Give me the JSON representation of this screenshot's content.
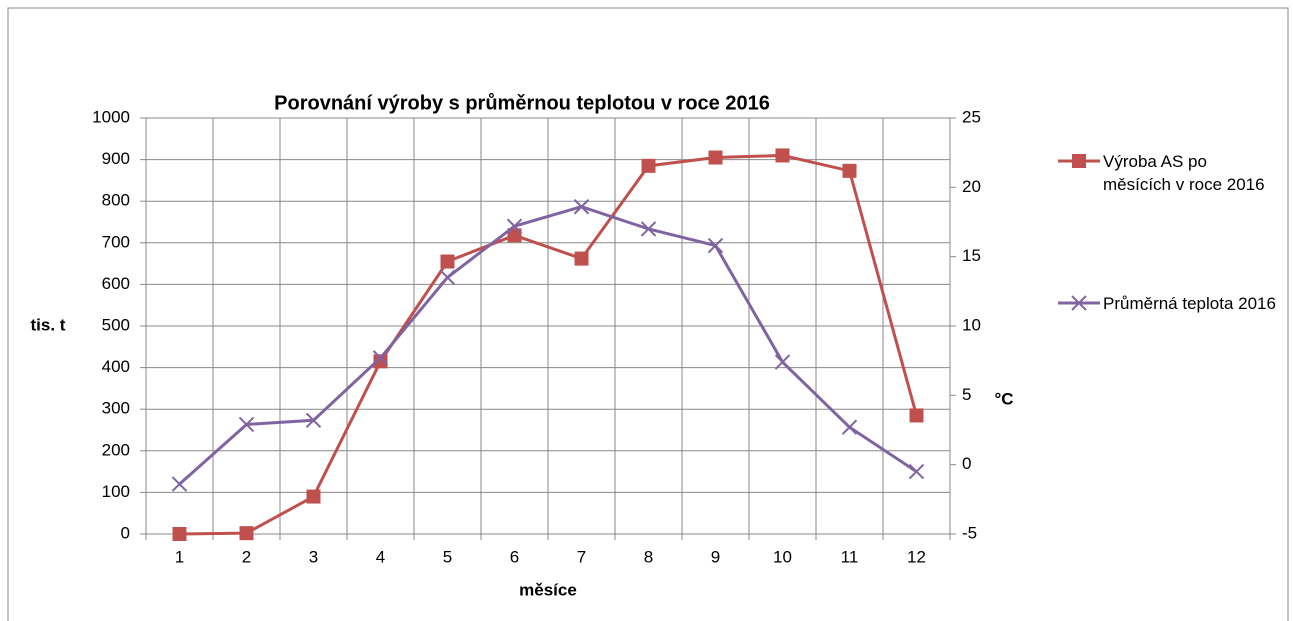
{
  "chart_data": {
    "type": "line",
    "title": "Porovnání výroby s průměrnou teplotou v roce 2016",
    "xlabel": "měsíce",
    "ylabel": "tis. t",
    "y2label": "°C",
    "categories": [
      "1",
      "2",
      "3",
      "4",
      "5",
      "6",
      "7",
      "8",
      "9",
      "10",
      "11",
      "12"
    ],
    "series": [
      {
        "name": "Výroba AS po měsících v roce 2016",
        "color": "#c0504d",
        "marker": "square",
        "values": [
          0,
          2,
          90,
          415,
          655,
          718,
          662,
          885,
          905,
          910,
          873,
          285
        ]
      },
      {
        "name": "Průměrná teplota 2016",
        "color": "#8064a2",
        "marker": "x",
        "axis": "y2",
        "values": [
          -1.4,
          2.9,
          3.2,
          7.7,
          13.5,
          17.2,
          18.6,
          17.0,
          15.8,
          7.4,
          2.7,
          -0.5
        ]
      }
    ],
    "ylim": [
      0,
      1000
    ],
    "yticks": [
      0,
      100,
      200,
      300,
      400,
      500,
      600,
      700,
      800,
      900,
      1000
    ],
    "y2lim": [
      -5,
      25
    ],
    "y2ticks": [
      -5,
      0,
      5,
      10,
      15,
      20,
      25
    ],
    "grid": true,
    "legend": "right"
  }
}
